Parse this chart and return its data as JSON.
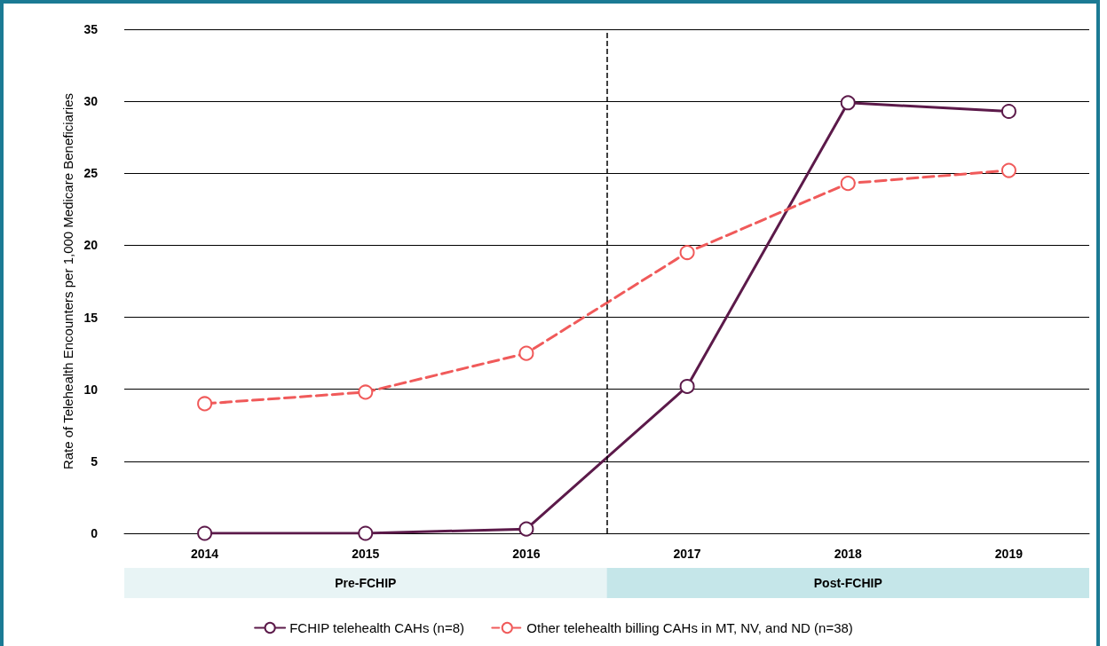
{
  "chart_data": {
    "type": "line",
    "ylabel": "Rate of Telehealth Encounters per 1,000 Medicare Beneficiaries",
    "x": [
      2014,
      2015,
      2016,
      2017,
      2018,
      2019
    ],
    "xlim": [
      2013.5,
      2019.5
    ],
    "xticks": [
      2014,
      2015,
      2016,
      2017,
      2018,
      2019
    ],
    "ylim": [
      0,
      35
    ],
    "yticks": [
      0,
      5,
      10,
      15,
      20,
      25,
      30,
      35
    ],
    "series": [
      {
        "name": "FCHIP telehealth CAHs (n=8)",
        "color": "#5c1a4a",
        "line_style": "solid",
        "values": [
          0,
          0,
          0.3,
          10.2,
          29.9,
          29.3
        ]
      },
      {
        "name": "Other telehealth billing CAHs in MT, NV, and ND (n=38)",
        "color": "#f05a5a",
        "line_style": "dashed",
        "values": [
          9.0,
          9.8,
          12.5,
          19.5,
          24.3,
          25.2
        ]
      }
    ],
    "ref_lines": [
      {
        "axis": "x",
        "value": 2016.5,
        "color": "#000000",
        "line_style": "dashed"
      }
    ],
    "annotations": [
      "Pre-FCHIP",
      "Post-FCHIP"
    ],
    "grid": "y",
    "legend": "bottom",
    "marker": "circle"
  }
}
